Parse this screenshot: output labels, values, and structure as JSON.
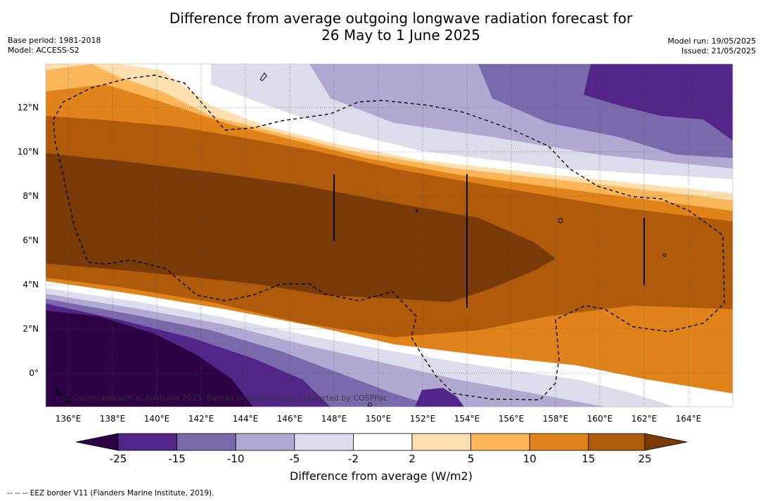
{
  "title_line1": "Difference from average outgoing longwave radiation forecast for",
  "title_line2": "26 May to 1 June 2025",
  "base_period": "Base period: 1981-2018",
  "model": "Model: ACCESS-S2",
  "model_run": "Model run: 19/05/2025",
  "issued": "Issued: 21/05/2025",
  "copyright": "© Commonwealth of Australia 2025, Bureau of Meteorology, supported by COSPPac",
  "colorbar_title": "Difference from average (W/m2)",
  "eez_note": "--  --  -- EEZ border V11 (Flanders Marine Institute, 2019).",
  "map": {
    "lon_range": [
      135,
      166
    ],
    "lat_range": [
      -1.5,
      14
    ],
    "lon_ticks": [
      "136°E",
      "138°E",
      "140°E",
      "142°E",
      "144°E",
      "146°E",
      "148°E",
      "150°E",
      "152°E",
      "154°E",
      "156°E",
      "158°E",
      "160°E",
      "162°E",
      "164°E"
    ],
    "lat_ticks": [
      "12°N",
      "10°N",
      "8°N",
      "6°N",
      "4°N",
      "2°N",
      "0°"
    ]
  },
  "colorbar": {
    "tick_labels": [
      "-25",
      "-15",
      "-10",
      "-5",
      "-2",
      "2",
      "5",
      "10",
      "15",
      "25"
    ],
    "colors": [
      "#2d0346",
      "#532589",
      "#7a6aab",
      "#b2a9d2",
      "#dcdcec",
      "#ffffff",
      "#fedfb0",
      "#fbb65a",
      "#e0831a",
      "#b05b0b",
      "#7a3a08"
    ]
  }
}
